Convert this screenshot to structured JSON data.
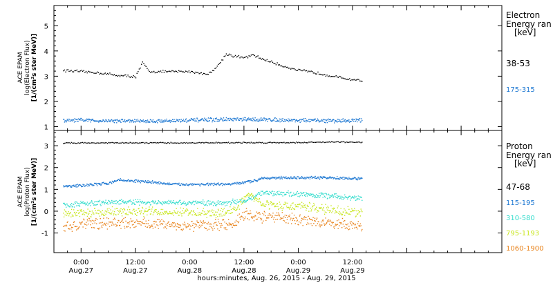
{
  "xaxis": {
    "title": "hours:minutes, Aug. 26, 2015 - Aug. 29, 2015",
    "xlim_hours": [
      -6,
      93
    ],
    "ticks": [
      {
        "hour": 0,
        "time": "0:00",
        "date": "Aug.27"
      },
      {
        "hour": 12,
        "time": "12:00",
        "date": "Aug.27"
      },
      {
        "hour": 24,
        "time": "0:00",
        "date": "Aug.28"
      },
      {
        "hour": 36,
        "time": "12:00",
        "date": "Aug.28"
      },
      {
        "hour": 48,
        "time": "0:00",
        "date": "Aug.29"
      },
      {
        "hour": 60,
        "time": "12:00",
        "date": "Aug.29"
      }
    ]
  },
  "panels": {
    "electron": {
      "ylabel": [
        "ACE EPAM",
        "log(Electron Flux)",
        "[1/(cm²s ster MeV)]"
      ],
      "ylim": [
        0.85,
        5.8
      ],
      "yticks": [
        "1",
        "2",
        "3",
        "4",
        "5"
      ],
      "legend_title": [
        "Electron",
        "Energy ran",
        "[keV]"
      ]
    },
    "proton": {
      "ylabel": [
        "ACE EPAM",
        "log(Proton Flux)",
        "[1/(cm²s ster MeV)]"
      ],
      "ylim": [
        -1.9,
        3.7
      ],
      "yticks": [
        "-1",
        "0",
        "1",
        "2",
        "3"
      ],
      "legend_title": [
        "Proton",
        "Energy ran",
        "[keV]"
      ]
    }
  },
  "chart_data": [
    {
      "type": "scatter",
      "panel": "electron",
      "x_unit": "hours since 2015-08-27 00:00 UT",
      "series": [
        {
          "name": "38-53",
          "color": "#000000",
          "x": [
            -4,
            0,
            4,
            8,
            12,
            13.5,
            15,
            20,
            24,
            28,
            30,
            32,
            34,
            36,
            38,
            40,
            44,
            48,
            52,
            56,
            59,
            62
          ],
          "y": [
            3.25,
            3.2,
            3.15,
            3.05,
            3.0,
            3.55,
            3.2,
            3.2,
            3.2,
            3.1,
            3.4,
            3.9,
            3.8,
            3.75,
            3.85,
            3.7,
            3.45,
            3.25,
            3.15,
            3.0,
            2.9,
            2.85
          ]
        },
        {
          "name": "175-315",
          "color": "#1e78d2",
          "x": [
            -4,
            0,
            8,
            16,
            24,
            32,
            40,
            48,
            56,
            62
          ],
          "y": [
            1.25,
            1.27,
            1.25,
            1.24,
            1.27,
            1.3,
            1.3,
            1.27,
            1.25,
            1.27
          ]
        }
      ]
    },
    {
      "type": "scatter",
      "panel": "proton",
      "x_unit": "hours since 2015-08-27 00:00 UT",
      "series": [
        {
          "name": "47-68",
          "color": "#000000",
          "x": [
            -4,
            0,
            10,
            20,
            30,
            40,
            50,
            56,
            62
          ],
          "y": [
            3.15,
            3.15,
            3.15,
            3.15,
            3.16,
            3.16,
            3.17,
            3.2,
            3.17
          ]
        },
        {
          "name": "115-195",
          "color": "#1e78d2",
          "x": [
            -4,
            0,
            6,
            8,
            12,
            16,
            20,
            24,
            28,
            32,
            35,
            38,
            40,
            44,
            48,
            52,
            56,
            62
          ],
          "y": [
            1.15,
            1.2,
            1.3,
            1.45,
            1.4,
            1.35,
            1.25,
            1.25,
            1.25,
            1.25,
            1.3,
            1.4,
            1.55,
            1.55,
            1.55,
            1.55,
            1.55,
            1.5
          ]
        },
        {
          "name": "310-580",
          "color": "#33dccc",
          "x": [
            -4,
            0,
            8,
            16,
            24,
            32,
            36,
            38,
            40,
            44,
            48,
            52,
            56,
            62
          ],
          "y": [
            0.3,
            0.35,
            0.45,
            0.4,
            0.4,
            0.4,
            0.5,
            0.7,
            0.85,
            0.85,
            0.8,
            0.75,
            0.7,
            0.6
          ]
        },
        {
          "name": "795-1193",
          "color": "#c8e61e",
          "x": [
            -4,
            0,
            8,
            16,
            24,
            30,
            34,
            36,
            37,
            38,
            40,
            44,
            48,
            52,
            56,
            62
          ],
          "y": [
            -0.1,
            -0.05,
            0.0,
            0.0,
            -0.05,
            -0.1,
            0.1,
            0.6,
            0.85,
            0.6,
            0.4,
            0.25,
            0.25,
            0.15,
            0.05,
            -0.05
          ]
        },
        {
          "name": "1060-1900",
          "color": "#e8821a",
          "x": [
            -4,
            0,
            8,
            16,
            24,
            30,
            34,
            36,
            38,
            40,
            44,
            48,
            52,
            56,
            62
          ],
          "y": [
            -0.7,
            -0.6,
            -0.5,
            -0.55,
            -0.65,
            -0.6,
            -0.5,
            -0.1,
            -0.2,
            -0.25,
            -0.25,
            -0.35,
            -0.45,
            -0.55,
            -0.7
          ]
        }
      ]
    }
  ]
}
